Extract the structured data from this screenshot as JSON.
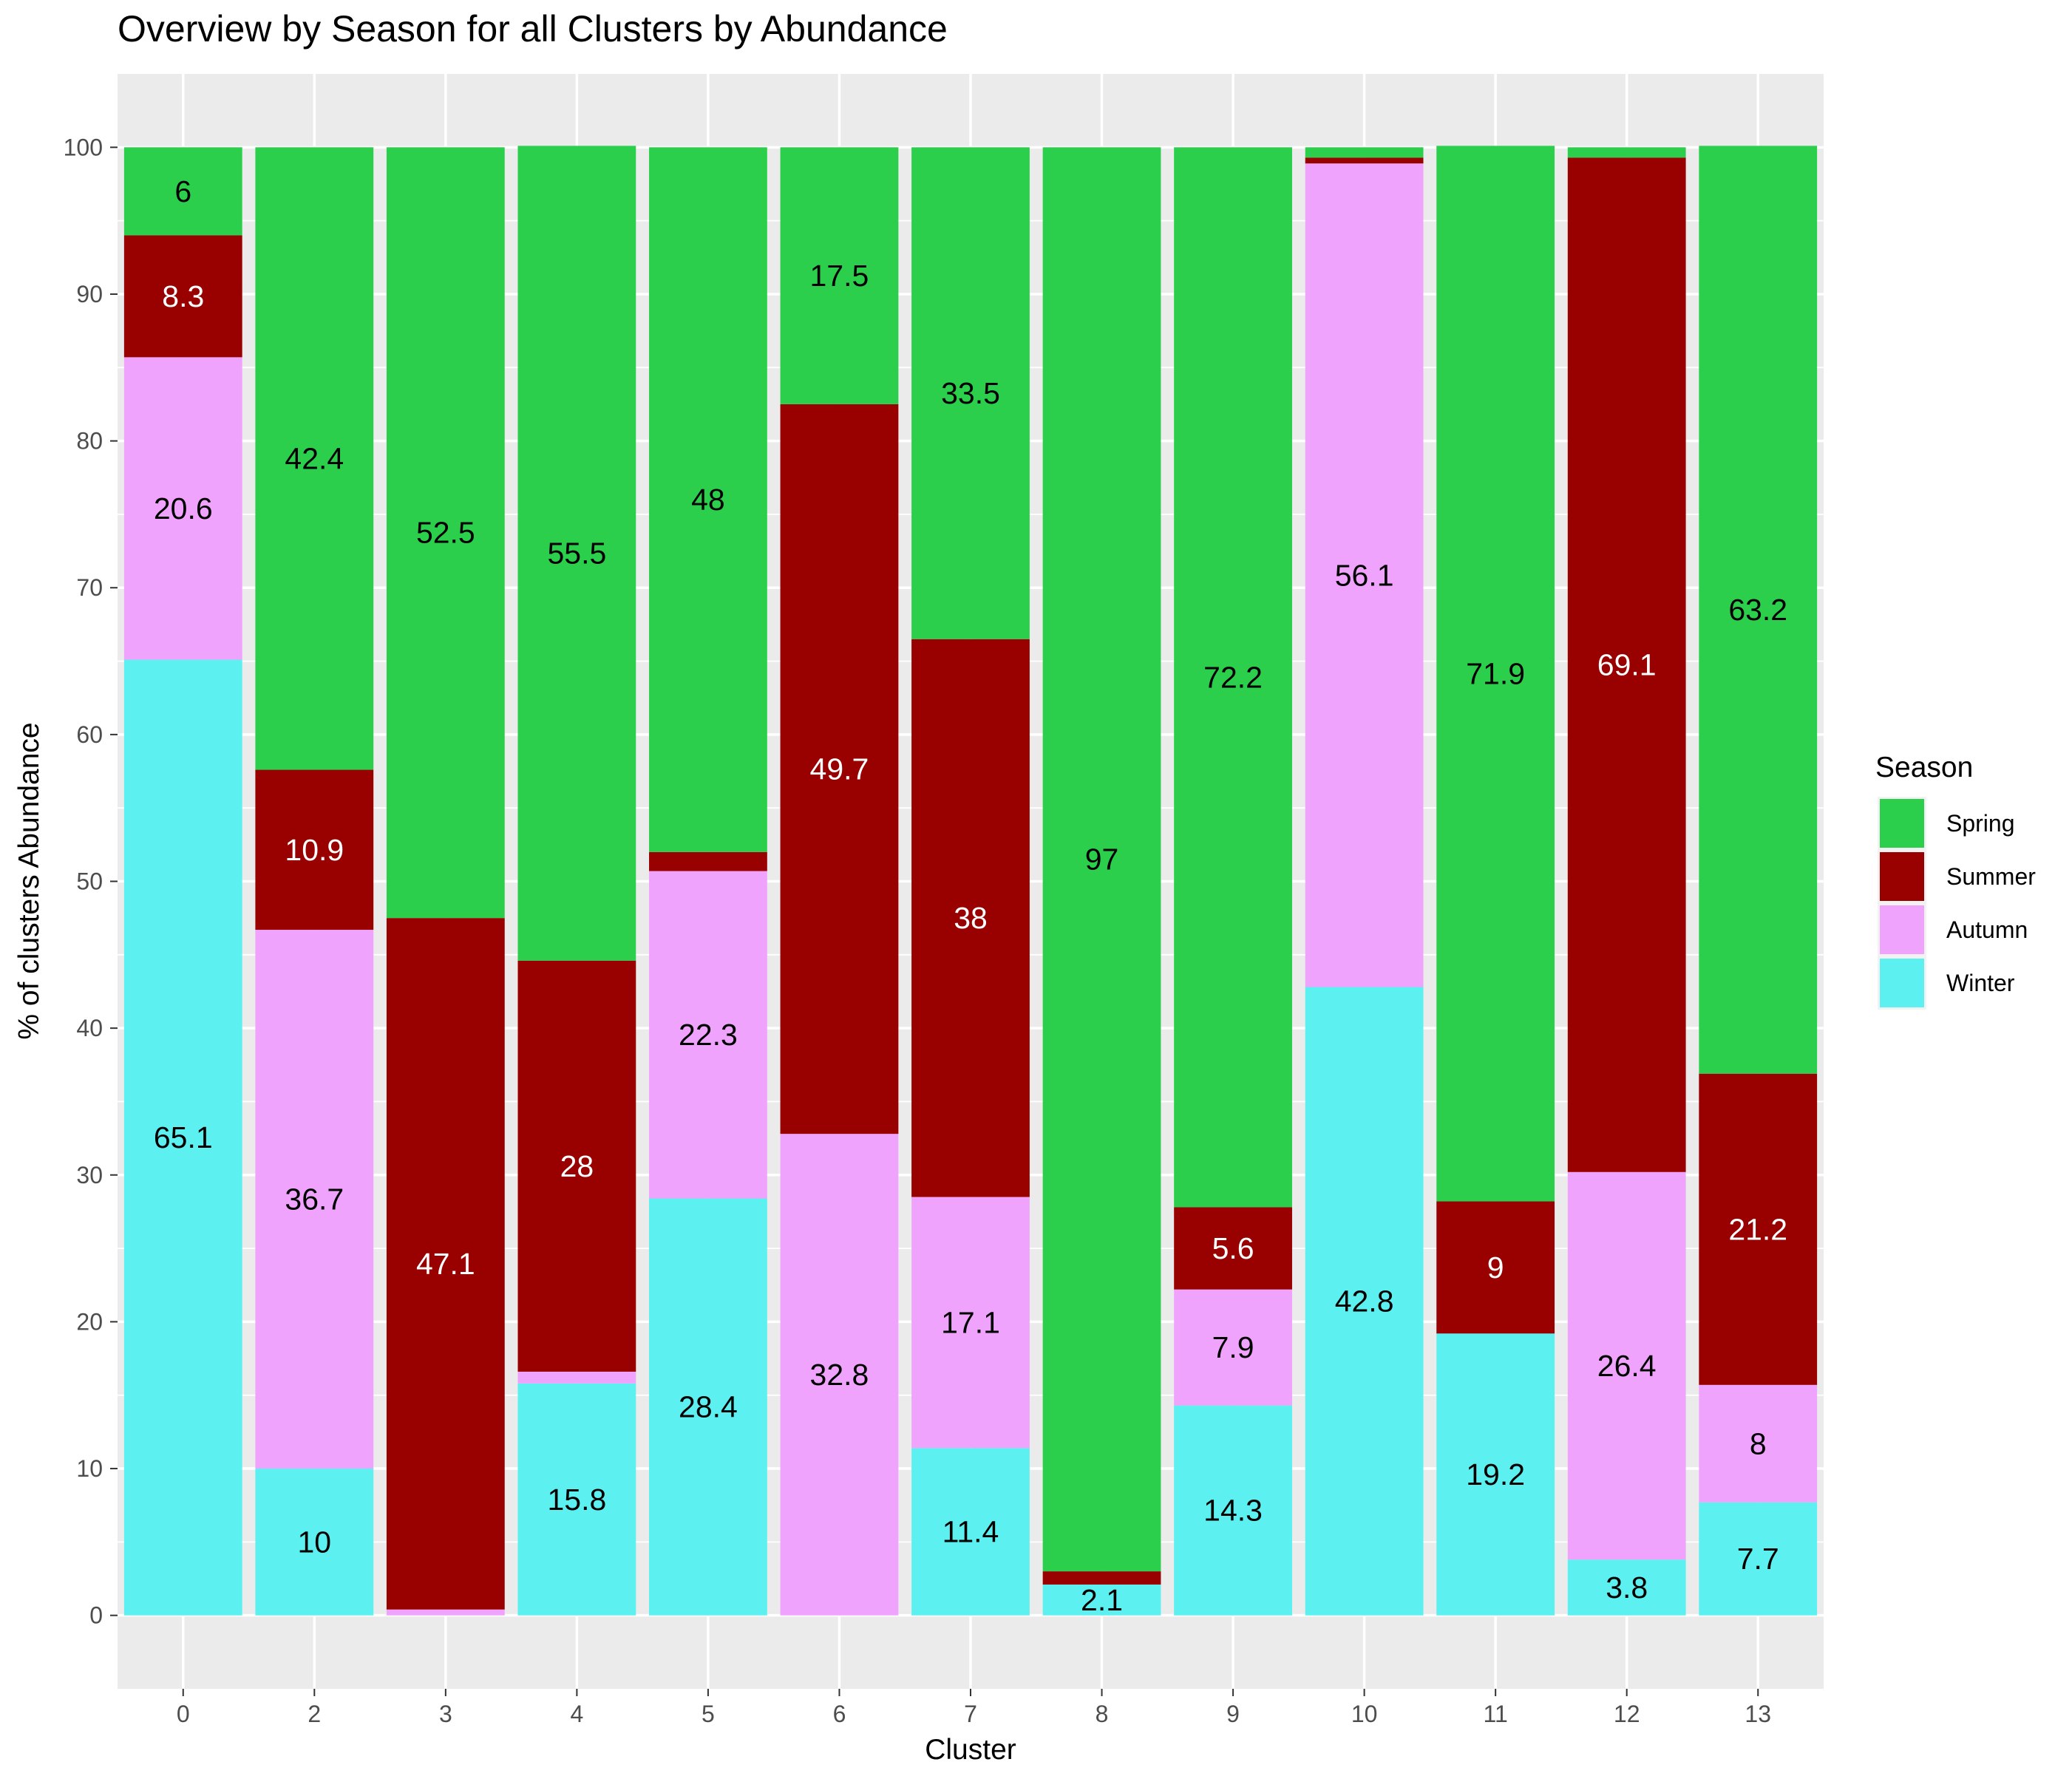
{
  "chart_data": {
    "type": "bar",
    "stacked": true,
    "title": "Overview by Season for all Clusters by Abundance",
    "xlabel": "Cluster",
    "ylabel": "% of clusters Abundance",
    "ylim": [
      -5,
      105
    ],
    "yticks": [
      0,
      10,
      20,
      30,
      40,
      50,
      60,
      70,
      80,
      90,
      100
    ],
    "grid": true,
    "legend_title": "Season",
    "legend_position": "right",
    "categories": [
      "0",
      "2",
      "3",
      "4",
      "5",
      "6",
      "7",
      "8",
      "9",
      "10",
      "11",
      "12",
      "13"
    ],
    "series": [
      {
        "name": "Winter",
        "color": "#5cf0f0",
        "label_color": "#000000",
        "values": [
          65.1,
          10,
          0,
          15.8,
          28.4,
          0,
          11.4,
          2.1,
          14.3,
          42.8,
          19.2,
          3.8,
          7.7
        ],
        "labels": [
          "65.1",
          "10",
          "",
          "15.8",
          "28.4",
          "",
          "11.4",
          "2.1",
          "14.3",
          "42.8",
          "19.2",
          "3.8",
          "7.7"
        ]
      },
      {
        "name": "Autumn",
        "color": "#f0a3fd",
        "label_color": "#000000",
        "values": [
          20.6,
          36.7,
          0.4,
          0.8,
          22.3,
          32.8,
          17.1,
          0,
          7.9,
          56.1,
          0,
          26.4,
          8
        ],
        "labels": [
          "20.6",
          "36.7",
          "",
          "",
          "22.3",
          "32.8",
          "17.1",
          "",
          "7.9",
          "56.1",
          "",
          "26.4",
          "8"
        ]
      },
      {
        "name": "Summer",
        "color": "#990000",
        "label_color": "#ffffff",
        "values": [
          8.3,
          10.9,
          47.1,
          28,
          1.3,
          49.7,
          38,
          0.9,
          5.6,
          0.4,
          9,
          69.1,
          21.2
        ],
        "labels": [
          "8.3",
          "10.9",
          "47.1",
          "28",
          "",
          "49.7",
          "38",
          "",
          "5.6",
          "",
          "9",
          "69.1",
          "21.2"
        ]
      },
      {
        "name": "Spring",
        "color": "#2bcf4b",
        "label_color": "#000000",
        "values": [
          6,
          42.4,
          52.5,
          55.5,
          48,
          17.5,
          33.5,
          97,
          72.2,
          0.7,
          71.9,
          0.7,
          63.2
        ],
        "labels": [
          "6",
          "42.4",
          "52.5",
          "55.5",
          "48",
          "17.5",
          "33.5",
          "97",
          "72.2",
          "",
          "71.9",
          "",
          "63.2"
        ]
      }
    ],
    "legend_order": [
      "Spring",
      "Summer",
      "Autumn",
      "Winter"
    ],
    "panel_color": "#ebebeb",
    "gridline_color": "#ffffff"
  }
}
